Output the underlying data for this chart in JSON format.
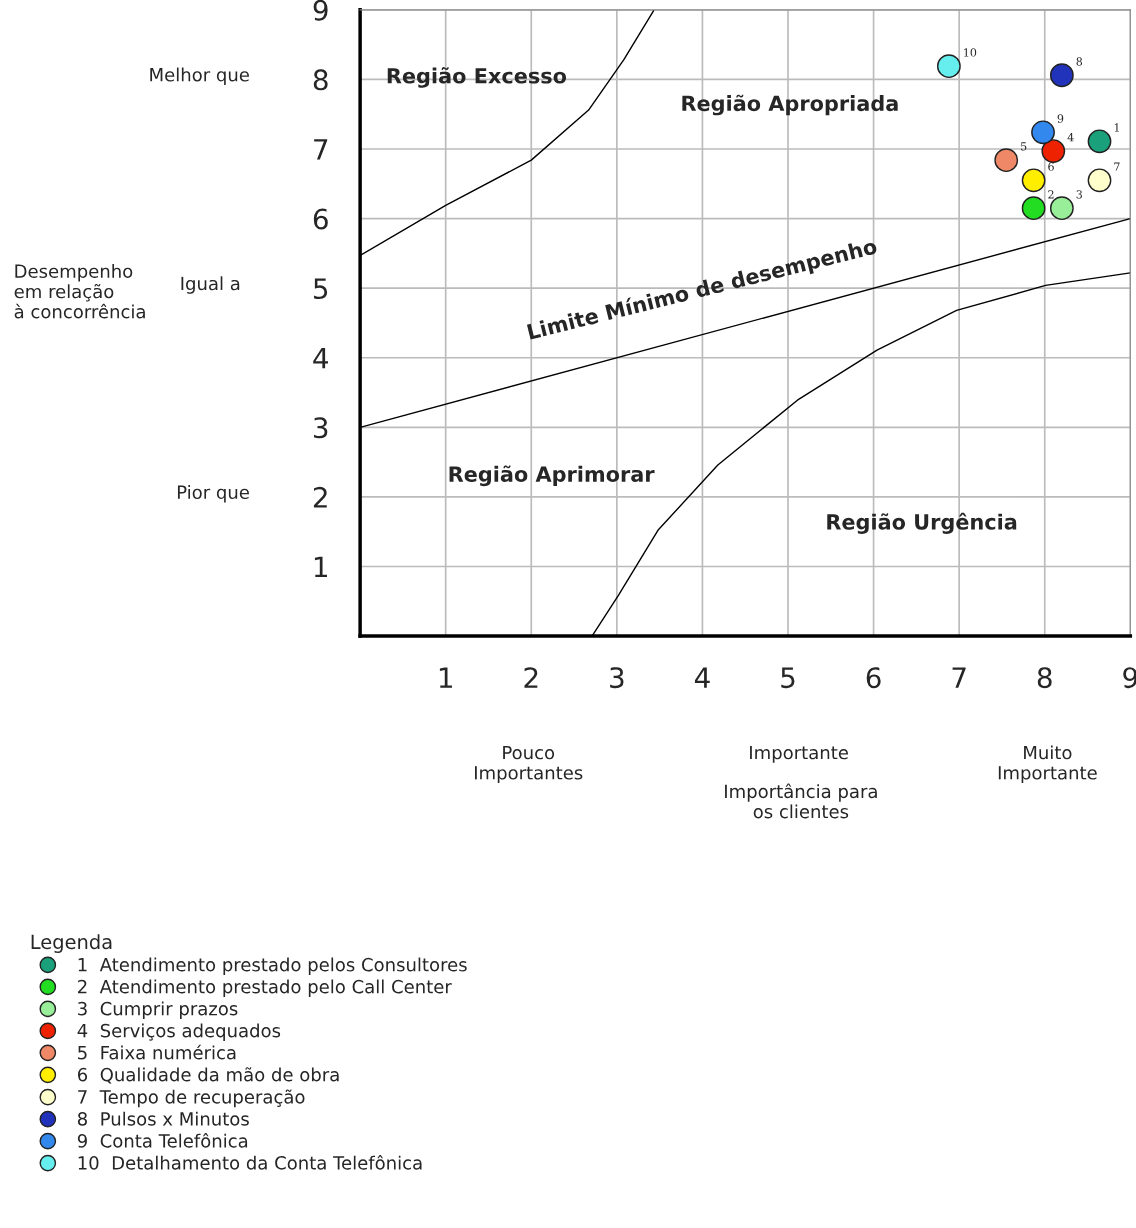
{
  "chart_data": {
    "type": "scatter",
    "legend_title": "Legenda",
    "legend": "bottom",
    "grid": true,
    "marker": "circle",
    "xlim": [
      0,
      9
    ],
    "ylim": [
      0,
      9
    ],
    "xticks": [
      1,
      2,
      3,
      4,
      5,
      6,
      7,
      8,
      9
    ],
    "yticks": [
      1,
      2,
      3,
      4,
      5,
      6,
      7,
      8,
      9
    ],
    "series": [
      {
        "name": "1  Atendimento prestado pelos Consultores",
        "color": "#1aa07a",
        "x": [
          8.64
        ],
        "values": [
          7.11
        ]
      },
      {
        "name": "2  Atendimento prestado pelo Call Center",
        "color": "#22dd22",
        "x": [
          7.87
        ],
        "values": [
          6.15
        ]
      },
      {
        "name": "3  Cumprir prazos",
        "color": "#99ee99",
        "x": [
          8.2
        ],
        "values": [
          6.15
        ]
      },
      {
        "name": "4  Serviços adequados",
        "color": "#ee2200",
        "x": [
          8.1
        ],
        "values": [
          6.97
        ]
      },
      {
        "name": "5  Faixa numérica",
        "color": "#ee8866",
        "x": [
          7.55
        ],
        "values": [
          6.84
        ]
      },
      {
        "name": "6  Qualidade da mão de obra",
        "color": "#ffee00",
        "x": [
          7.87
        ],
        "values": [
          6.55
        ]
      },
      {
        "name": "7  Tempo de recuperação",
        "color": "#ffffcc",
        "x": [
          8.64
        ],
        "values": [
          6.55
        ]
      },
      {
        "name": "8  Pulsos x Minutos",
        "color": "#2233bb",
        "x": [
          8.2
        ],
        "values": [
          8.06
        ]
      },
      {
        "name": "9  Conta Telefônica",
        "color": "#3388ee",
        "x": [
          7.98
        ],
        "values": [
          7.24
        ]
      },
      {
        "name": "10  Detalhamento da Conta Telefônica",
        "color": "#66eeee",
        "x": [
          6.88
        ],
        "values": [
          8.19
        ]
      },
      {
        "type": "line",
        "marker": "none",
        "color": "#000000",
        "x": [
          0,
          1,
          2,
          2.67,
          3.08,
          3.43
        ],
        "values": [
          5.47,
          6.19,
          6.84,
          7.56,
          8.28,
          8.99
        ]
      },
      {
        "type": "line",
        "marker": "none",
        "color": "#000000",
        "x": [
          0,
          9
        ],
        "values": [
          3,
          6
        ]
      },
      {
        "type": "line",
        "marker": "none",
        "color": "#000000",
        "x": [
          2.71,
          3.02,
          3.48,
          4.18,
          5.11,
          6.04,
          6.97,
          8.01,
          9
        ],
        "values": [
          0,
          0.59,
          1.52,
          2.46,
          3.39,
          4.11,
          4.68,
          5.04,
          5.22
        ]
      }
    ],
    "annotations": [
      {
        "text": "1",
        "x": 8.64,
        "y": 7.11
      },
      {
        "text": "2",
        "x": 7.87,
        "y": 6.15
      },
      {
        "text": "3",
        "x": 8.2,
        "y": 6.15
      },
      {
        "text": "4",
        "x": 8.1,
        "y": 6.97
      },
      {
        "text": "5",
        "x": 7.55,
        "y": 6.84
      },
      {
        "text": "6",
        "x": 7.87,
        "y": 6.55
      },
      {
        "text": "7",
        "x": 8.64,
        "y": 6.55
      },
      {
        "text": "8",
        "x": 8.2,
        "y": 8.06
      },
      {
        "text": "9",
        "x": 7.98,
        "y": 7.24
      },
      {
        "text": "10",
        "x": 6.88,
        "y": 8.19
      },
      "Região Excesso",
      "Região Apropriada",
      "Limite Mínimo de desempenho",
      "Região Aprimorar",
      "Região Urgência",
      "Melhor que",
      "Igual a",
      "Pior que",
      "Pouco\nImportantes",
      "Importante",
      "Muito\nImportante",
      "Importância para\nos clientes",
      "Desempenho\nem relação\nà concorrência"
    ]
  }
}
